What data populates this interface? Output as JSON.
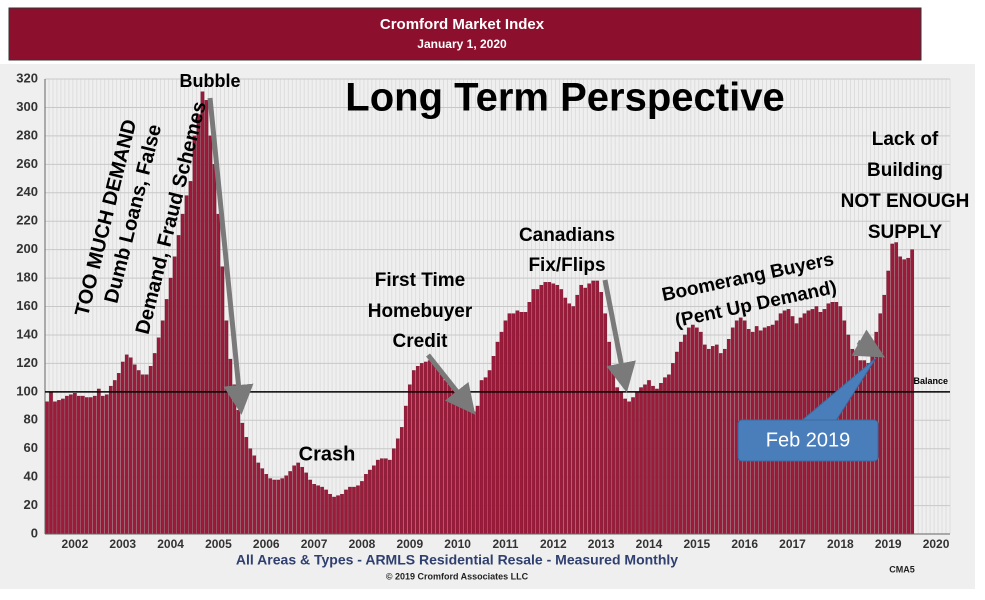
{
  "chart_data": {
    "type": "bar",
    "title": "Cromford Market Index",
    "subtitle": "January 1, 2020",
    "heading": "Long Term Perspective",
    "footer": "All Areas & Types - ARMLS Residential Resale - Measured Monthly",
    "copyright": "© 2019 Cromford Associates LLC",
    "code": "CMA5",
    "reference_line": {
      "value": 100,
      "label": "Balance"
    },
    "callout": "Feb 2019",
    "annotations": [
      "Bubble",
      "TOO MUCH DEMAND",
      "Dumb Loans, False",
      "Demand, Fraud Schemes",
      "Crash",
      "First Time",
      "Homebuyer",
      "Credit",
      "Canadians",
      "Fix/Flips",
      "Boomerang Buyers",
      "(Pent Up Demand)",
      "Lack of",
      "Building",
      "NOT ENOUGH",
      "SUPPLY"
    ],
    "color": "#9b1b3b",
    "grid": true,
    "ylim": [
      0,
      320
    ],
    "yticks": [
      0,
      20,
      40,
      60,
      80,
      100,
      120,
      140,
      160,
      180,
      200,
      220,
      240,
      260,
      280,
      300,
      320
    ],
    "categories": [
      null,
      null,
      null,
      null,
      null,
      null,
      null,
      "2002",
      null,
      null,
      null,
      null,
      null,
      null,
      null,
      null,
      null,
      null,
      null,
      "2003",
      null,
      null,
      null,
      null,
      null,
      null,
      null,
      null,
      null,
      null,
      null,
      "2004",
      null,
      null,
      null,
      null,
      null,
      null,
      null,
      null,
      null,
      null,
      null,
      "2005",
      null,
      null,
      null,
      null,
      null,
      null,
      null,
      null,
      null,
      null,
      null,
      "2006",
      null,
      null,
      null,
      null,
      null,
      null,
      null,
      null,
      null,
      null,
      null,
      "2007",
      null,
      null,
      null,
      null,
      null,
      null,
      null,
      null,
      null,
      null,
      null,
      "2008",
      null,
      null,
      null,
      null,
      null,
      null,
      null,
      null,
      null,
      null,
      null,
      "2009",
      null,
      null,
      null,
      null,
      null,
      null,
      null,
      null,
      null,
      null,
      null,
      "2010",
      null,
      null,
      null,
      null,
      null,
      null,
      null,
      null,
      null,
      null,
      null,
      "2011",
      null,
      null,
      null,
      null,
      null,
      null,
      null,
      null,
      null,
      null,
      null,
      "2012",
      null,
      null,
      null,
      null,
      null,
      null,
      null,
      null,
      null,
      null,
      null,
      "2013",
      null,
      null,
      null,
      null,
      null,
      null,
      null,
      null,
      null,
      null,
      null,
      "2014",
      null,
      null,
      null,
      null,
      null,
      null,
      null,
      null,
      null,
      null,
      null,
      "2015",
      null,
      null,
      null,
      null,
      null,
      null,
      null,
      null,
      null,
      null,
      null,
      "2016",
      null,
      null,
      null,
      null,
      null,
      null,
      null,
      null,
      null,
      null,
      null,
      "2017",
      null,
      null,
      null,
      null,
      null,
      null,
      null,
      null,
      null,
      null,
      null,
      "2018",
      null,
      null,
      null,
      null,
      null,
      null,
      null,
      null,
      null,
      null,
      null,
      "2019",
      null,
      null,
      null,
      null,
      null,
      null,
      null,
      null,
      null,
      null,
      null,
      "2020",
      null,
      null,
      null
    ],
    "values": [
      93,
      100,
      93,
      94,
      95,
      97,
      98,
      99,
      97,
      97,
      96,
      96,
      97,
      102,
      97,
      98,
      104,
      108,
      113,
      121,
      126,
      124,
      119,
      115,
      112,
      112,
      118,
      127,
      138,
      150,
      165,
      180,
      195,
      210,
      225,
      238,
      248,
      280,
      295,
      311,
      305,
      280,
      260,
      225,
      188,
      150,
      123,
      105,
      87,
      78,
      68,
      60,
      55,
      50,
      46,
      42,
      39,
      38,
      38,
      39,
      41,
      44,
      48,
      50,
      47,
      43,
      38,
      35,
      34,
      33,
      31,
      28,
      26,
      27,
      28,
      31,
      33,
      33,
      34,
      37,
      42,
      45,
      48,
      52,
      53,
      53,
      52,
      60,
      67,
      75,
      90,
      105,
      115,
      118,
      120,
      121,
      122,
      120,
      117,
      112,
      108,
      105,
      103,
      100,
      95,
      91,
      88,
      86,
      90,
      108,
      110,
      115,
      125,
      135,
      142,
      150,
      155,
      155,
      157,
      156,
      156,
      163,
      172,
      172,
      175,
      177,
      177,
      176,
      175,
      172,
      166,
      162,
      160,
      168,
      175,
      173,
      176,
      178,
      178,
      170,
      155,
      135,
      115,
      103,
      100,
      95,
      93,
      96,
      100,
      103,
      105,
      108,
      104,
      102,
      106,
      110,
      112,
      120,
      128,
      135,
      140,
      145,
      147,
      145,
      142,
      133,
      130,
      132,
      133,
      127,
      130,
      137,
      145,
      150,
      152,
      150,
      144,
      142,
      146,
      143,
      145,
      146,
      147,
      150,
      155,
      157,
      158,
      153,
      148,
      152,
      155,
      157,
      158,
      160,
      156,
      158,
      162,
      163,
      163,
      160,
      150,
      140,
      130,
      125,
      122,
      122,
      120,
      135,
      142,
      155,
      168,
      185,
      204,
      205,
      195,
      193,
      194,
      200,
      null,
      null,
      null,
      null,
      null,
      null,
      null,
      null,
      null
    ]
  }
}
